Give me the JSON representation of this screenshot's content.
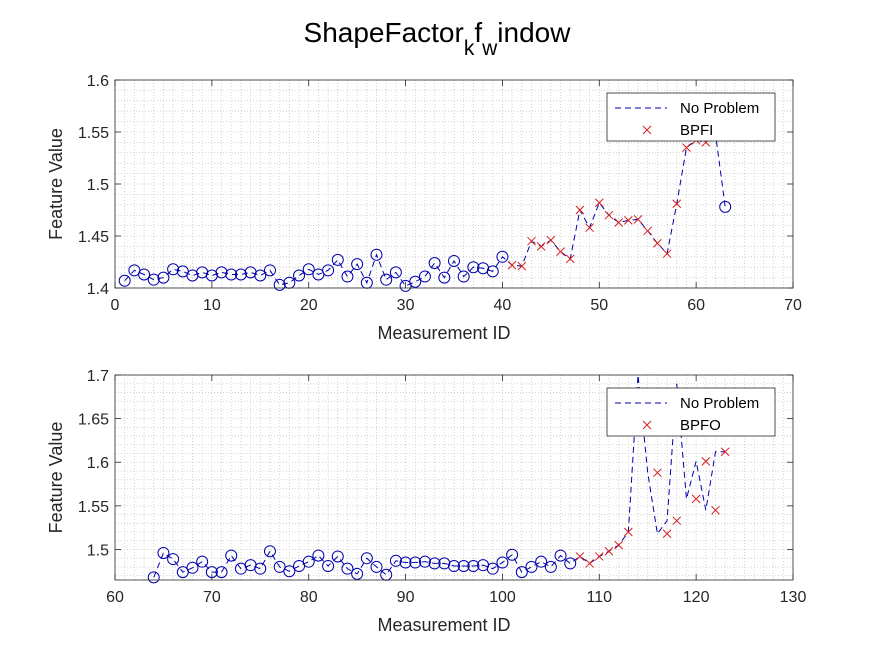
{
  "figure": {
    "title_main": "ShapeFactor",
    "title_sub1": "k",
    "title_mid": "f",
    "title_sub2": "w",
    "title_end": "indow"
  },
  "colors": {
    "normal": "#0000ad",
    "fault": "#d62020",
    "axis": "#262626",
    "grid": "#c8c8c8"
  },
  "chart_data": [
    {
      "type": "scatter",
      "xlabel": "Measurement ID",
      "ylabel": "Feature Value",
      "xlim": [
        0,
        70
      ],
      "ylim": [
        1.4,
        1.6
      ],
      "xticks": [
        0,
        10,
        20,
        30,
        40,
        50,
        60,
        70
      ],
      "yticks": [
        1.4,
        1.45,
        1.5,
        1.55,
        1.6
      ],
      "grid": "minor-dotted",
      "legend_position": "top-right",
      "legend": [
        {
          "label": "No Problem",
          "marker": "dashed-line"
        },
        {
          "label": "BPFI",
          "marker": "x"
        }
      ],
      "line": {
        "x": [
          1,
          2,
          3,
          4,
          5,
          6,
          7,
          8,
          9,
          10,
          11,
          12,
          13,
          14,
          15,
          16,
          17,
          18,
          19,
          20,
          21,
          22,
          23,
          24,
          25,
          26,
          27,
          28,
          29,
          30,
          31,
          32,
          33,
          34,
          35,
          36,
          37,
          38,
          39,
          40,
          41,
          42,
          43,
          44,
          45,
          46,
          47,
          48,
          49,
          50,
          51,
          52,
          53,
          54,
          55,
          56,
          57,
          58,
          59,
          60,
          61,
          62,
          63
        ],
        "y": [
          1.407,
          1.417,
          1.413,
          1.408,
          1.41,
          1.418,
          1.416,
          1.412,
          1.415,
          1.412,
          1.415,
          1.413,
          1.413,
          1.415,
          1.412,
          1.417,
          1.403,
          1.405,
          1.412,
          1.418,
          1.413,
          1.417,
          1.427,
          1.411,
          1.423,
          1.405,
          1.432,
          1.408,
          1.415,
          1.402,
          1.406,
          1.411,
          1.424,
          1.41,
          1.426,
          1.411,
          1.42,
          1.419,
          1.416,
          1.43,
          1.422,
          1.421,
          1.445,
          1.44,
          1.446,
          1.435,
          1.428,
          1.475,
          1.458,
          1.482,
          1.47,
          1.463,
          1.465,
          1.466,
          1.455,
          1.443,
          1.433,
          1.481,
          1.535,
          1.542,
          1.54,
          1.548,
          1.478
        ]
      },
      "circles": {
        "x": [
          1,
          2,
          3,
          4,
          5,
          6,
          7,
          8,
          9,
          10,
          11,
          12,
          13,
          14,
          15,
          16,
          17,
          18,
          19,
          20,
          21,
          22,
          23,
          24,
          25,
          26,
          27,
          28,
          29,
          30,
          31,
          32,
          33,
          34,
          35,
          36,
          37,
          38,
          39,
          40,
          63
        ],
        "y": [
          1.407,
          1.417,
          1.413,
          1.408,
          1.41,
          1.418,
          1.416,
          1.412,
          1.415,
          1.412,
          1.415,
          1.413,
          1.413,
          1.415,
          1.412,
          1.417,
          1.403,
          1.405,
          1.412,
          1.418,
          1.413,
          1.417,
          1.427,
          1.411,
          1.423,
          1.405,
          1.432,
          1.408,
          1.415,
          1.402,
          1.406,
          1.411,
          1.424,
          1.41,
          1.426,
          1.411,
          1.42,
          1.419,
          1.416,
          1.43,
          1.478
        ]
      },
      "crosses": {
        "x": [
          41,
          42,
          43,
          44,
          45,
          46,
          47,
          48,
          49,
          50,
          51,
          52,
          53,
          54,
          55,
          56,
          57,
          58,
          59,
          60,
          61,
          62
        ],
        "y": [
          1.422,
          1.421,
          1.445,
          1.44,
          1.446,
          1.435,
          1.428,
          1.475,
          1.458,
          1.482,
          1.47,
          1.463,
          1.465,
          1.466,
          1.455,
          1.443,
          1.433,
          1.481,
          1.535,
          1.542,
          1.54,
          1.548
        ]
      }
    },
    {
      "type": "scatter",
      "xlabel": "Measurement ID",
      "ylabel": "Feature Value",
      "xlim": [
        60,
        130
      ],
      "ylim": [
        1.465,
        1.7
      ],
      "xticks": [
        60,
        70,
        80,
        90,
        100,
        110,
        120,
        130
      ],
      "yticks": [
        1.5,
        1.55,
        1.6,
        1.65,
        1.7
      ],
      "grid": "minor-dotted",
      "legend_position": "top-right",
      "legend": [
        {
          "label": "No Problem",
          "marker": "dashed-line"
        },
        {
          "label": "BPFO",
          "marker": "x"
        }
      ],
      "line": {
        "x": [
          64,
          65,
          66,
          67,
          68,
          69,
          70,
          71,
          72,
          73,
          74,
          75,
          76,
          77,
          78,
          79,
          80,
          81,
          82,
          83,
          84,
          85,
          86,
          87,
          88,
          89,
          90,
          91,
          92,
          93,
          94,
          95,
          96,
          97,
          98,
          99,
          100,
          101,
          102,
          103,
          104,
          105,
          106,
          107,
          108,
          109,
          110,
          111,
          112,
          113,
          114,
          115,
          116,
          117,
          118,
          119,
          120,
          121,
          122,
          123
        ],
        "y": [
          1.468,
          1.496,
          1.489,
          1.474,
          1.479,
          1.486,
          1.474,
          1.474,
          1.493,
          1.478,
          1.482,
          1.478,
          1.498,
          1.48,
          1.475,
          1.481,
          1.486,
          1.493,
          1.481,
          1.492,
          1.478,
          1.472,
          1.49,
          1.48,
          1.471,
          1.487,
          1.485,
          1.485,
          1.486,
          1.484,
          1.484,
          1.481,
          1.481,
          1.481,
          1.482,
          1.478,
          1.485,
          1.494,
          1.474,
          1.48,
          1.486,
          1.48,
          1.493,
          1.484,
          1.492,
          1.484,
          1.492,
          1.498,
          1.505,
          1.52,
          1.7,
          1.588,
          1.518,
          1.533,
          1.69,
          1.558,
          1.601,
          1.545,
          1.612,
          1.612
        ]
      },
      "circles": {
        "x": [
          64,
          65,
          66,
          67,
          68,
          69,
          70,
          71,
          72,
          73,
          74,
          75,
          76,
          77,
          78,
          79,
          80,
          81,
          82,
          83,
          84,
          85,
          86,
          87,
          88,
          89,
          90,
          91,
          92,
          93,
          94,
          95,
          96,
          97,
          98,
          99,
          100,
          101,
          102,
          103,
          104,
          105,
          106,
          107
        ],
        "y": [
          1.468,
          1.496,
          1.489,
          1.474,
          1.479,
          1.486,
          1.474,
          1.474,
          1.493,
          1.478,
          1.482,
          1.478,
          1.498,
          1.48,
          1.475,
          1.481,
          1.486,
          1.493,
          1.481,
          1.492,
          1.478,
          1.472,
          1.49,
          1.48,
          1.471,
          1.487,
          1.485,
          1.485,
          1.486,
          1.484,
          1.484,
          1.481,
          1.481,
          1.481,
          1.482,
          1.478,
          1.485,
          1.494,
          1.474,
          1.48,
          1.486,
          1.48,
          1.493,
          1.484
        ]
      },
      "crosses": {
        "x": [
          108,
          109,
          110,
          111,
          112,
          113,
          116,
          117,
          118,
          120,
          121,
          122,
          123
        ],
        "y": [
          1.492,
          1.484,
          1.492,
          1.498,
          1.505,
          1.52,
          1.588,
          1.518,
          1.533,
          1.558,
          1.601,
          1.545,
          1.612
        ]
      }
    }
  ]
}
